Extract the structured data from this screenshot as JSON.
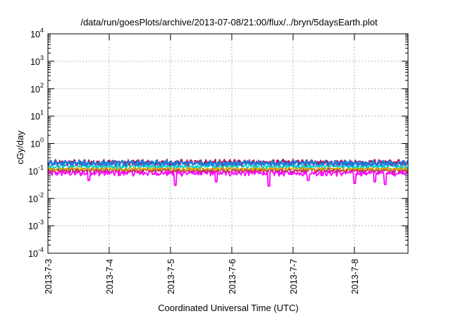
{
  "chart_data": {
    "type": "line",
    "title": "/data/run/goesPlots/archive/2013-07-08/21:00/flux/../bryn/5daysEarth.plot",
    "xlabel": "Coordinated Universal Time (UTC)",
    "ylabel": "cGy/day",
    "y_scale": "log",
    "ylim": [
      0.0001,
      10000
    ],
    "y_ticks": [
      {
        "value": 0.0001,
        "base": "10",
        "exp": "-4"
      },
      {
        "value": 0.001,
        "base": "10",
        "exp": "-3"
      },
      {
        "value": 0.01,
        "base": "10",
        "exp": "-2"
      },
      {
        "value": 0.1,
        "base": "10",
        "exp": "-1"
      },
      {
        "value": 1,
        "base": "10",
        "exp": "0"
      },
      {
        "value": 10,
        "base": "10",
        "exp": "1"
      },
      {
        "value": 100,
        "base": "10",
        "exp": "2"
      },
      {
        "value": 1000,
        "base": "10",
        "exp": "3"
      },
      {
        "value": 10000,
        "base": "10",
        "exp": "4"
      }
    ],
    "xlim": [
      "2013-07-03T00:00",
      "2013-07-08T21:00"
    ],
    "x_ticks": [
      "2013-7-3",
      "2013-7-4",
      "2013-7-5",
      "2013-7-6",
      "2013-7-7",
      "2013-7-8"
    ],
    "grid": true,
    "legend": "none",
    "series": [
      {
        "color": "#ff00ff",
        "base": 0.085,
        "variability": 0.18,
        "dips": [
          [
            "2013-07-03T16:00",
            0.045
          ],
          [
            "2013-07-05T02:00",
            0.03
          ],
          [
            "2013-07-05T18:00",
            0.04
          ],
          [
            "2013-07-06T14:30",
            0.028
          ],
          [
            "2013-07-07T06:00",
            0.045
          ],
          [
            "2013-07-08T00:00",
            0.035
          ],
          [
            "2013-07-08T08:00",
            0.04
          ],
          [
            "2013-07-08T12:00",
            0.032
          ]
        ]
      },
      {
        "color": "#c0306a",
        "base": 0.105,
        "variability": 0.12,
        "dips": []
      },
      {
        "color": "#d0a000",
        "base": 0.12,
        "variability": 0.1,
        "dips": []
      },
      {
        "color": "#00d0d0",
        "base": 0.15,
        "variability": 0.12,
        "dips": []
      },
      {
        "color": "#b01050",
        "base": 0.2,
        "variability": 0.18,
        "dips": []
      },
      {
        "color": "#1f7adc",
        "base": 0.19,
        "variability": 0.16,
        "dips": []
      }
    ]
  }
}
